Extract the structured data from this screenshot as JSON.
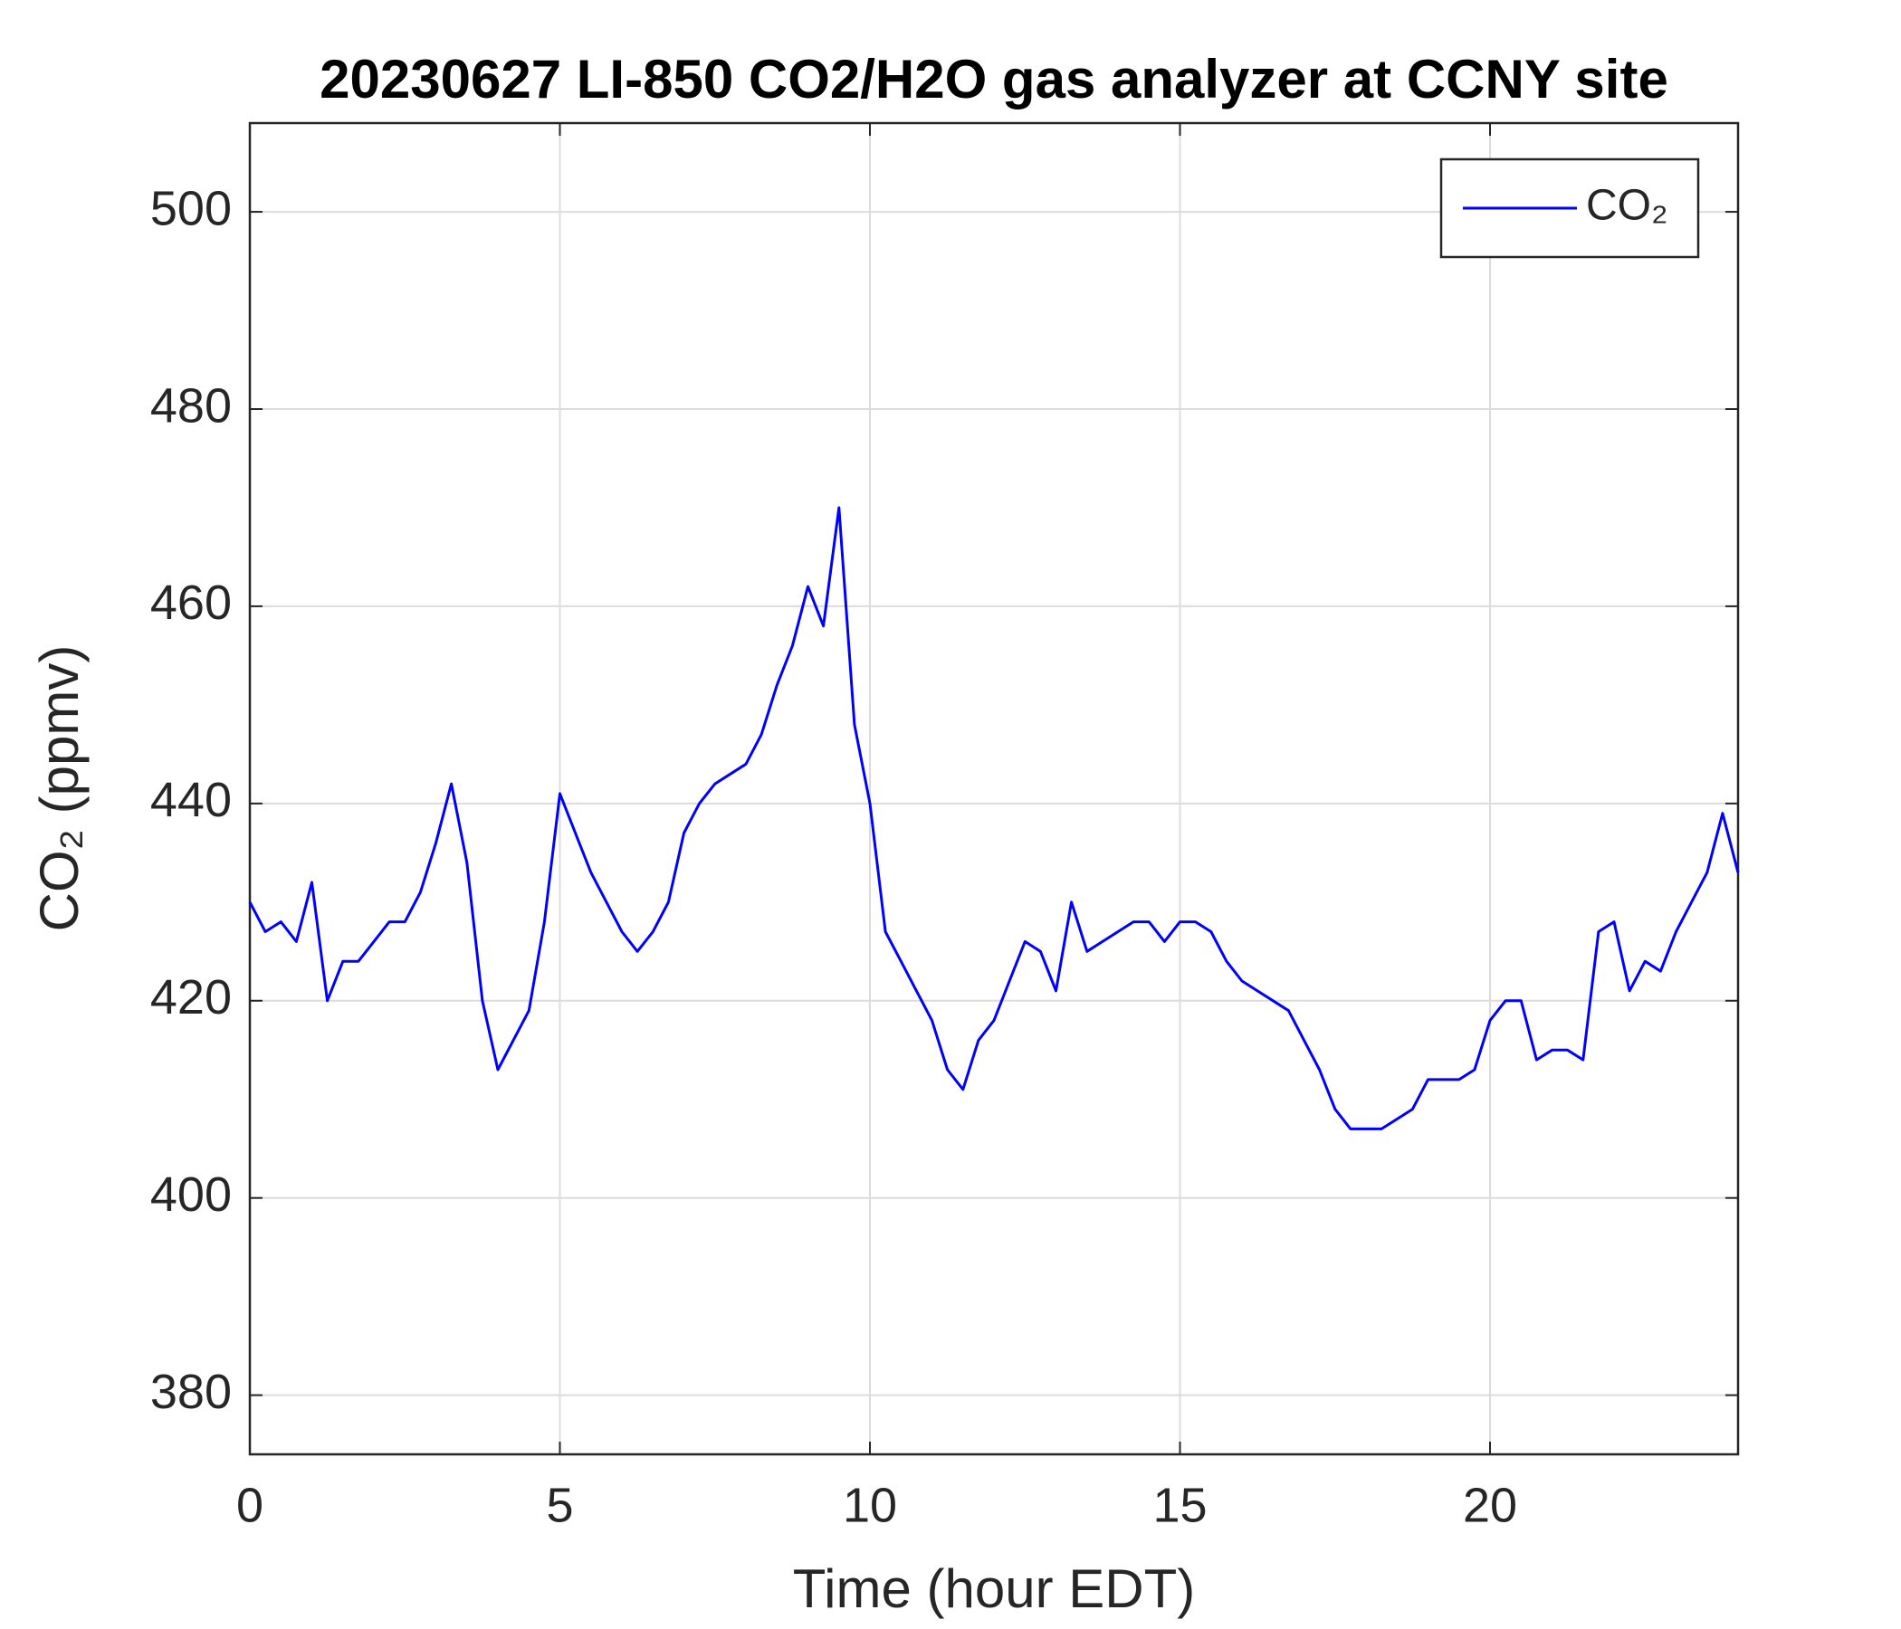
{
  "chart_data": {
    "type": "line",
    "title": "20230627 LI-850 CO2/H2O gas analyzer at CCNY site",
    "xlabel": "Time (hour EDT)",
    "ylabel": "CO₂ (ppmv)",
    "xlim": [
      0,
      24
    ],
    "xticks": [
      0,
      5,
      10,
      15,
      20
    ],
    "ylim": [
      374,
      509
    ],
    "yticks": [
      380,
      400,
      420,
      440,
      460,
      480,
      500
    ],
    "grid": true,
    "legend": "upper right",
    "x": [
      0,
      0.25,
      0.5,
      0.75,
      1,
      1.25,
      1.5,
      1.75,
      2,
      2.25,
      2.5,
      2.75,
      3,
      3.25,
      3.5,
      3.75,
      4,
      4.25,
      4.5,
      4.75,
      5,
      5.25,
      5.5,
      5.75,
      6,
      6.25,
      6.5,
      6.75,
      7,
      7.25,
      7.5,
      7.75,
      8,
      8.25,
      8.5,
      8.75,
      9,
      9.25,
      9.5,
      9.75,
      10,
      10.25,
      10.5,
      10.75,
      11,
      11.25,
      11.5,
      11.75,
      12,
      12.25,
      12.5,
      12.75,
      13,
      13.25,
      13.5,
      13.75,
      14,
      14.25,
      14.5,
      14.75,
      15,
      15.25,
      15.5,
      15.75,
      16,
      16.25,
      16.5,
      16.75,
      17,
      17.25,
      17.5,
      17.75,
      18,
      18.25,
      18.5,
      18.75,
      19,
      19.25,
      19.5,
      19.75,
      20,
      20.25,
      20.5,
      20.75,
      21,
      21.25,
      21.5,
      21.75,
      22,
      22.25,
      22.5,
      22.75,
      23,
      23.25,
      23.5,
      23.75,
      24
    ],
    "series": [
      {
        "name": "CO₂",
        "color": "#0000ff",
        "values": [
          430,
          427,
          428,
          426,
          432,
          420,
          424,
          424,
          426,
          428,
          428,
          431,
          436,
          442,
          434,
          420,
          413,
          416,
          419,
          428,
          441,
          437,
          433,
          430,
          427,
          425,
          427,
          430,
          437,
          440,
          442,
          443,
          444,
          447,
          452,
          456,
          462,
          458,
          470,
          448,
          440,
          427,
          424,
          421,
          418,
          413,
          411,
          416,
          418,
          422,
          426,
          425,
          421,
          430,
          425,
          426,
          427,
          428,
          428,
          426,
          428,
          428,
          427,
          424,
          422,
          421,
          420,
          419,
          416,
          413,
          409,
          407,
          407,
          407,
          408,
          409,
          412,
          412,
          412,
          413,
          418,
          420,
          420,
          414,
          415,
          415,
          414,
          427,
          428,
          421,
          424,
          423,
          427,
          430,
          433,
          439,
          433
        ]
      }
    ]
  }
}
